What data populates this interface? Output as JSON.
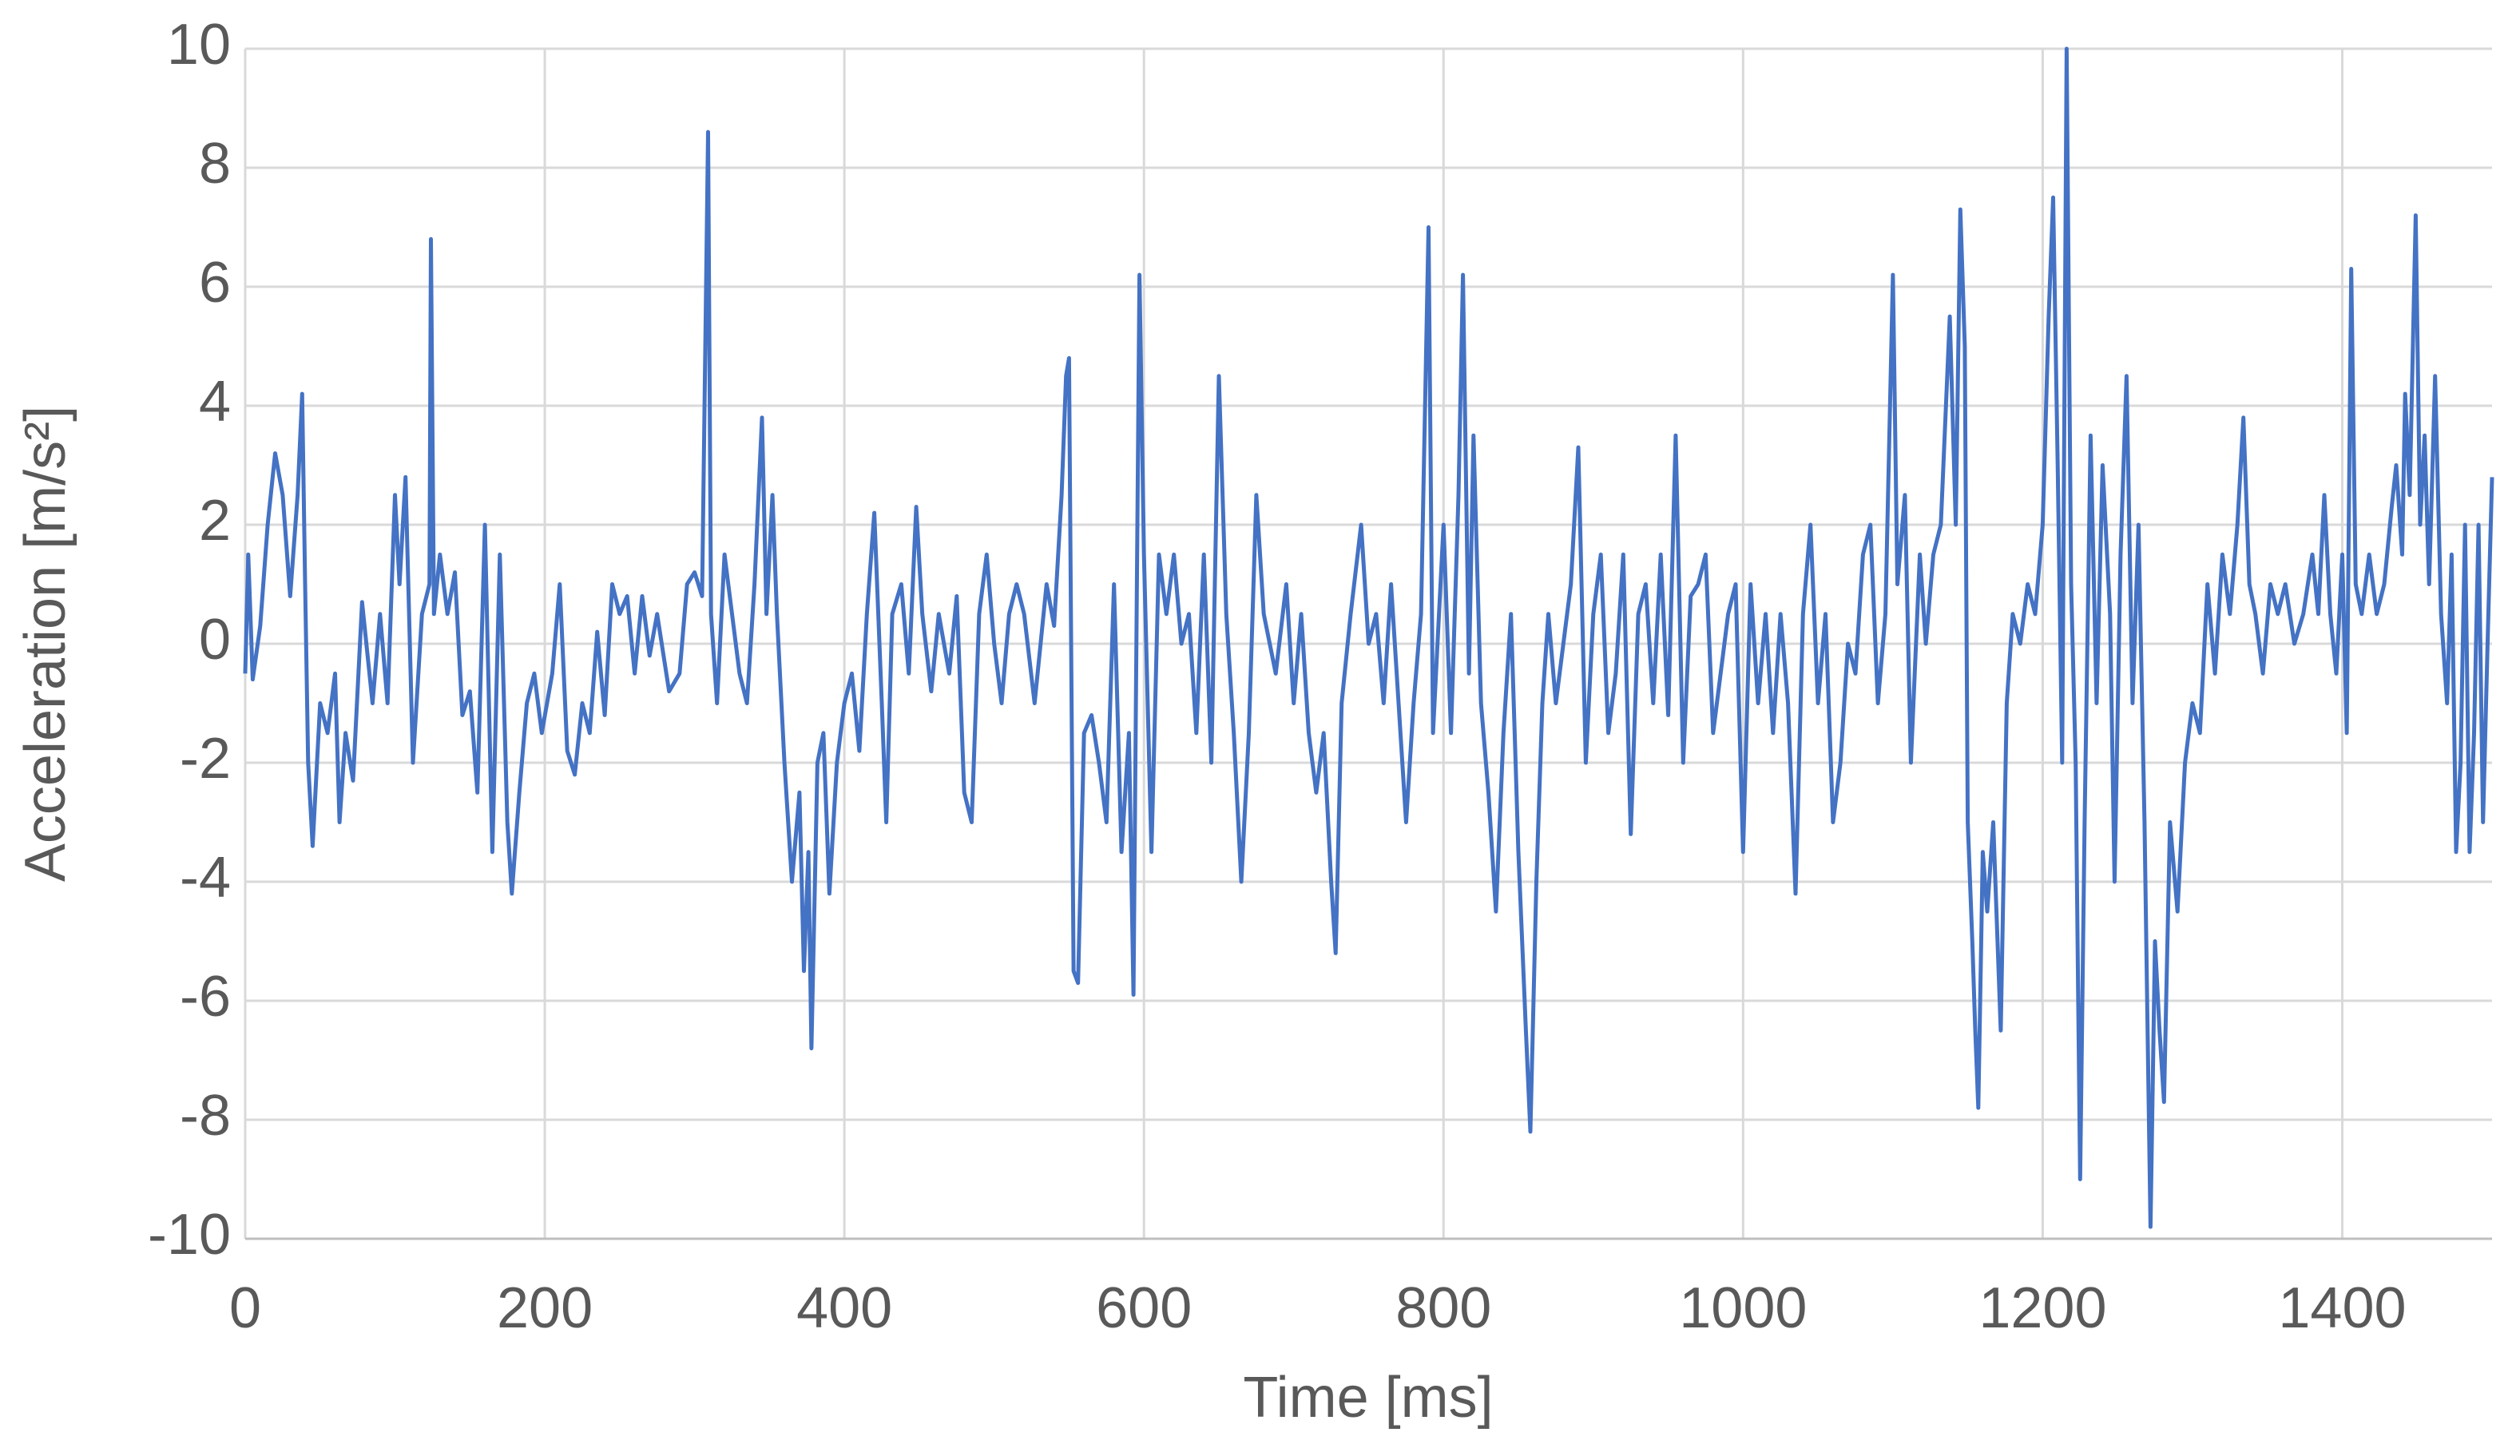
{
  "chart_data": {
    "type": "line",
    "x_label": "Time [ms]",
    "y_label": "Acceleration [m/s²]",
    "color": "#4472c4",
    "grid": true,
    "xlim": [
      0,
      1500
    ],
    "xticks": [
      0,
      200,
      400,
      600,
      800,
      1000,
      1200,
      1400
    ],
    "ylim": [
      -10,
      10
    ],
    "yticks": [
      -10,
      -8,
      -6,
      -4,
      -2,
      0,
      2,
      4,
      6,
      8,
      10
    ],
    "x": [
      0,
      2,
      5,
      10,
      15,
      20,
      25,
      30,
      35,
      38,
      40,
      42,
      45,
      50,
      55,
      60,
      63,
      67,
      72,
      78,
      85,
      90,
      95,
      100,
      103,
      107,
      112,
      118,
      123,
      124,
      126,
      130,
      135,
      140,
      145,
      150,
      155,
      160,
      165,
      170,
      175,
      178,
      183,
      188,
      193,
      198,
      205,
      210,
      215,
      220,
      225,
      230,
      235,
      240,
      245,
      250,
      255,
      260,
      265,
      270,
      275,
      283,
      290,
      295,
      300,
      305,
      309,
      311,
      315,
      320,
      325,
      330,
      335,
      340,
      345,
      348,
      352,
      355,
      360,
      365,
      370,
      373,
      376,
      378,
      382,
      386,
      390,
      395,
      400,
      405,
      410,
      415,
      420,
      425,
      428,
      432,
      438,
      443,
      448,
      452,
      458,
      463,
      470,
      475,
      480,
      485,
      490,
      495,
      500,
      505,
      510,
      515,
      520,
      527,
      535,
      540,
      545,
      548,
      550,
      553,
      556,
      560,
      565,
      570,
      575,
      580,
      585,
      590,
      593,
      597,
      600,
      605,
      610,
      615,
      620,
      625,
      630,
      635,
      640,
      645,
      650,
      655,
      660,
      665,
      670,
      675,
      680,
      688,
      695,
      700,
      705,
      710,
      715,
      720,
      725,
      728,
      732,
      738,
      745,
      750,
      755,
      760,
      765,
      770,
      775,
      780,
      785,
      790,
      793,
      797,
      800,
      805,
      810,
      813,
      817,
      820,
      825,
      830,
      835,
      840,
      845,
      850,
      855,
      858,
      862,
      866,
      870,
      875,
      880,
      885,
      890,
      895,
      900,
      905,
      910,
      915,
      920,
      925,
      930,
      935,
      940,
      945,
      950,
      955,
      960,
      965,
      970,
      975,
      980,
      985,
      990,
      995,
      1000,
      1005,
      1010,
      1015,
      1020,
      1025,
      1030,
      1035,
      1040,
      1045,
      1050,
      1055,
      1060,
      1065,
      1070,
      1075,
      1080,
      1085,
      1090,
      1095,
      1100,
      1103,
      1108,
      1112,
      1118,
      1122,
      1127,
      1132,
      1138,
      1142,
      1145,
      1148,
      1150,
      1153,
      1155,
      1157,
      1160,
      1163,
      1167,
      1172,
      1176,
      1180,
      1185,
      1190,
      1195,
      1200,
      1204,
      1207,
      1210,
      1213,
      1216,
      1219,
      1222,
      1225,
      1228,
      1232,
      1236,
      1240,
      1245,
      1248,
      1252,
      1256,
      1260,
      1264,
      1268,
      1272,
      1275,
      1278,
      1281,
      1285,
      1290,
      1295,
      1300,
      1305,
      1310,
      1315,
      1320,
      1325,
      1330,
      1334,
      1338,
      1342,
      1347,
      1352,
      1357,
      1362,
      1368,
      1374,
      1380,
      1384,
      1388,
      1392,
      1396,
      1400,
      1403,
      1406,
      1409,
      1413,
      1418,
      1423,
      1428,
      1433,
      1436,
      1440,
      1442,
      1445,
      1449,
      1452,
      1455,
      1458,
      1462,
      1466,
      1470,
      1473,
      1476,
      1479,
      1482,
      1485,
      1488,
      1491,
      1494,
      1497,
      1500
    ],
    "values": [
      -0.5,
      1.5,
      -0.6,
      0.3,
      2,
      3.2,
      2.5,
      0.8,
      2.5,
      4.2,
      1,
      -2,
      -3.4,
      -1,
      -1.5,
      -0.5,
      -3,
      -1.5,
      -2.3,
      0.7,
      -1,
      0.5,
      -1,
      2.5,
      1,
      2.8,
      -2,
      0.5,
      1,
      6.8,
      0.5,
      1.5,
      0.5,
      1.2,
      -1.2,
      -0.8,
      -2.5,
      2,
      -3.5,
      1.5,
      -3,
      -4.2,
      -2.5,
      -1,
      -0.5,
      -1.5,
      -0.5,
      1,
      -1.8,
      -2.2,
      -1,
      -1.5,
      0.2,
      -1.2,
      1,
      0.5,
      0.8,
      -0.5,
      0.8,
      -0.2,
      0.5,
      -0.8,
      -0.5,
      1,
      1.2,
      0.8,
      8.6,
      0.5,
      -1,
      1.5,
      0.5,
      -0.5,
      -1,
      1,
      3.8,
      0.5,
      2.5,
      0.5,
      -2,
      -4,
      -2.5,
      -5.5,
      -3.5,
      -6.8,
      -2,
      -1.5,
      -4.2,
      -2,
      -1,
      -0.5,
      -1.8,
      0.5,
      2.2,
      -1,
      -3,
      0.5,
      1,
      -0.5,
      2.3,
      0.5,
      -0.8,
      0.5,
      -0.5,
      0.8,
      -2.5,
      -3,
      0.5,
      1.5,
      0,
      -1,
      0.5,
      1,
      0.5,
      -1,
      1,
      0.3,
      2.5,
      4.5,
      4.8,
      -5.5,
      -5.7,
      -1.5,
      -1.2,
      -2,
      -3,
      1,
      -3.5,
      -1.5,
      -5.9,
      6.2,
      1.5,
      -3.5,
      1.5,
      0.5,
      1.5,
      0,
      0.5,
      -1.5,
      1.5,
      -2,
      4.5,
      0.5,
      -1.5,
      -4,
      -1.5,
      2.5,
      0.5,
      -0.5,
      1,
      -1,
      0.5,
      -1.5,
      -2.5,
      -1.5,
      -4,
      -5.2,
      -1,
      0.5,
      2,
      0,
      0.5,
      -1,
      1,
      -1,
      -3,
      -1,
      0.5,
      7,
      -1.5,
      0.5,
      2,
      -1.5,
      2.5,
      6.2,
      -0.5,
      3.5,
      -1,
      -2.5,
      -4.5,
      -1.5,
      0.5,
      -3.5,
      -6.5,
      -8.2,
      -4,
      -1,
      0.5,
      -1,
      0,
      1,
      3.3,
      -2,
      0.5,
      1.5,
      -1.5,
      -0.5,
      1.5,
      -3.2,
      0.5,
      1,
      -1,
      1.5,
      -1.2,
      3.5,
      -2,
      0.8,
      1,
      1.5,
      -1.5,
      -0.5,
      0.5,
      1,
      -3.5,
      1,
      -1,
      0.5,
      -1.5,
      0.5,
      -1,
      -4.2,
      0.5,
      2,
      -1,
      0.5,
      -3,
      -2,
      0,
      -0.5,
      1.5,
      2,
      -1,
      0.5,
      6.2,
      1,
      2.5,
      -2,
      1.5,
      0,
      1.5,
      2,
      5.5,
      2,
      7.3,
      5,
      -3,
      -5,
      -6.5,
      -7.8,
      -3.5,
      -4.5,
      -3,
      -6.5,
      -1,
      0.5,
      0,
      1,
      0.5,
      2,
      5.5,
      7.5,
      3,
      -2,
      10,
      1,
      -2,
      -9,
      -3,
      3.5,
      -1,
      3,
      0.5,
      -4,
      1.5,
      4.5,
      -1,
      2,
      -3,
      -9.8,
      -5,
      -6.5,
      -7.7,
      -3,
      -4.5,
      -2,
      -1,
      -1.5,
      1,
      -0.5,
      1.5,
      0.5,
      2,
      3.8,
      1,
      0.5,
      -0.5,
      1,
      0.5,
      1,
      0,
      0.5,
      1.5,
      0.5,
      2.5,
      0.5,
      -0.5,
      1.5,
      -1.5,
      6.3,
      1,
      0.5,
      1.5,
      0.5,
      1,
      2.3,
      3,
      1.5,
      4.2,
      2.5,
      7.2,
      2,
      3.5,
      1,
      4.5,
      0.5,
      -1,
      1.5,
      -3.5,
      -2,
      2,
      -3.5,
      -1.5,
      2,
      -3,
      0,
      2.8
    ]
  }
}
